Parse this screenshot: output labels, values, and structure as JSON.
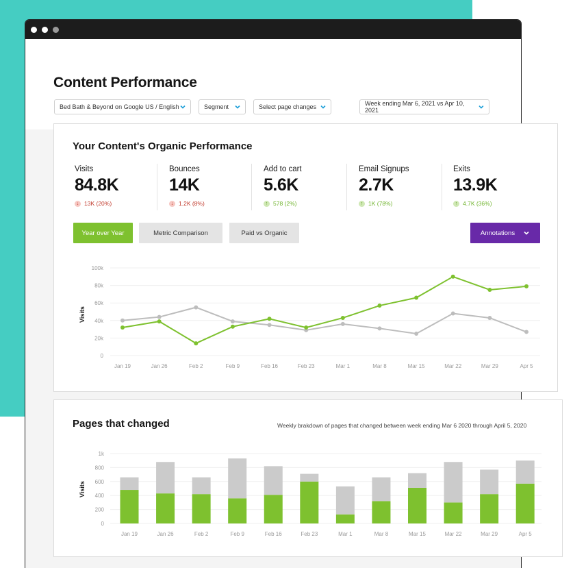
{
  "window": {
    "controls": [
      "#ffffff",
      "#ffffff",
      "#9a9a9a"
    ]
  },
  "header": {
    "title": "Content Performance",
    "filters": {
      "site": "Bed Bath & Beyond on Google US / English",
      "segment": "Segment",
      "page_changes": "Select page changes",
      "date_range": "Week ending Mar 6, 2021 vs Apr 10, 2021"
    }
  },
  "organic": {
    "title": "Your Content's Organic Performance",
    "metrics": [
      {
        "label": "Visits",
        "value": "84.8K",
        "delta": "13K (20%)",
        "direction": "down"
      },
      {
        "label": "Bounces",
        "value": "14K",
        "delta": "1.2K (8%)",
        "direction": "down"
      },
      {
        "label": "Add to cart",
        "value": "5.6K",
        "delta": "578 (2%)",
        "direction": "up"
      },
      {
        "label": "Email Signups",
        "value": "2.7K",
        "delta": "1K (78%)",
        "direction": "up"
      },
      {
        "label": "Exits",
        "value": "13.9K",
        "delta": "4.7K (36%)",
        "direction": "up"
      }
    ],
    "buttons": {
      "yoy": "Year over Year",
      "metric_comparison": "Metric Comparison",
      "paid_vs_organic": "Paid vs Organic",
      "annotations": "Annotations"
    }
  },
  "pages_changed": {
    "title": "Pages that changed",
    "subtitle": "Weekly brakdown of pages that changed between week ending Mar 6 2020 through April 5, 2020"
  },
  "colors": {
    "green": "#7ec12f",
    "gray_line": "#bdbdbd",
    "gray_bar": "#cbcbcb",
    "purple": "#6829a8",
    "teal": "#45cdc2"
  },
  "chart_data": [
    {
      "type": "line",
      "ylabel": "Visits",
      "x": [
        "Jan 19",
        "Jan 26",
        "Feb 2",
        "Feb 9",
        "Feb 16",
        "Feb 23",
        "Mar 1",
        "Mar 8",
        "Mar 15",
        "Mar 22",
        "Mar 29",
        "Apr 5"
      ],
      "yticks": [
        "0",
        "20k",
        "40k",
        "60k",
        "80k",
        "100k"
      ],
      "ylim": [
        0,
        100000
      ],
      "grid": true,
      "series": [
        {
          "color": "#7ec12f",
          "values": [
            32000,
            39000,
            14000,
            33000,
            42000,
            32000,
            43000,
            57000,
            66000,
            90000,
            75000,
            79000
          ]
        },
        {
          "color": "#bdbdbd",
          "values": [
            40000,
            44000,
            55000,
            39000,
            35000,
            29000,
            36000,
            31000,
            25000,
            48000,
            43000,
            27000
          ]
        }
      ]
    },
    {
      "type": "bar",
      "stacked": true,
      "ylabel": "Visits",
      "categories": [
        "Jan 19",
        "Jan 26",
        "Feb 2",
        "Feb 9",
        "Feb 16",
        "Feb 23",
        "Mar 1",
        "Mar 8",
        "Mar 15",
        "Mar 22",
        "Mar 29",
        "Apr 5"
      ],
      "yticks": [
        "0",
        "200",
        "400",
        "600",
        "800",
        "1k"
      ],
      "ylim": [
        0,
        1000
      ],
      "grid": true,
      "series": [
        {
          "color": "#7ec12f",
          "values": [
            480,
            430,
            420,
            360,
            410,
            600,
            130,
            320,
            510,
            300,
            420,
            570
          ]
        },
        {
          "color": "#cbcbcb",
          "values": [
            180,
            450,
            240,
            570,
            410,
            110,
            400,
            340,
            210,
            580,
            350,
            330
          ]
        }
      ]
    }
  ]
}
